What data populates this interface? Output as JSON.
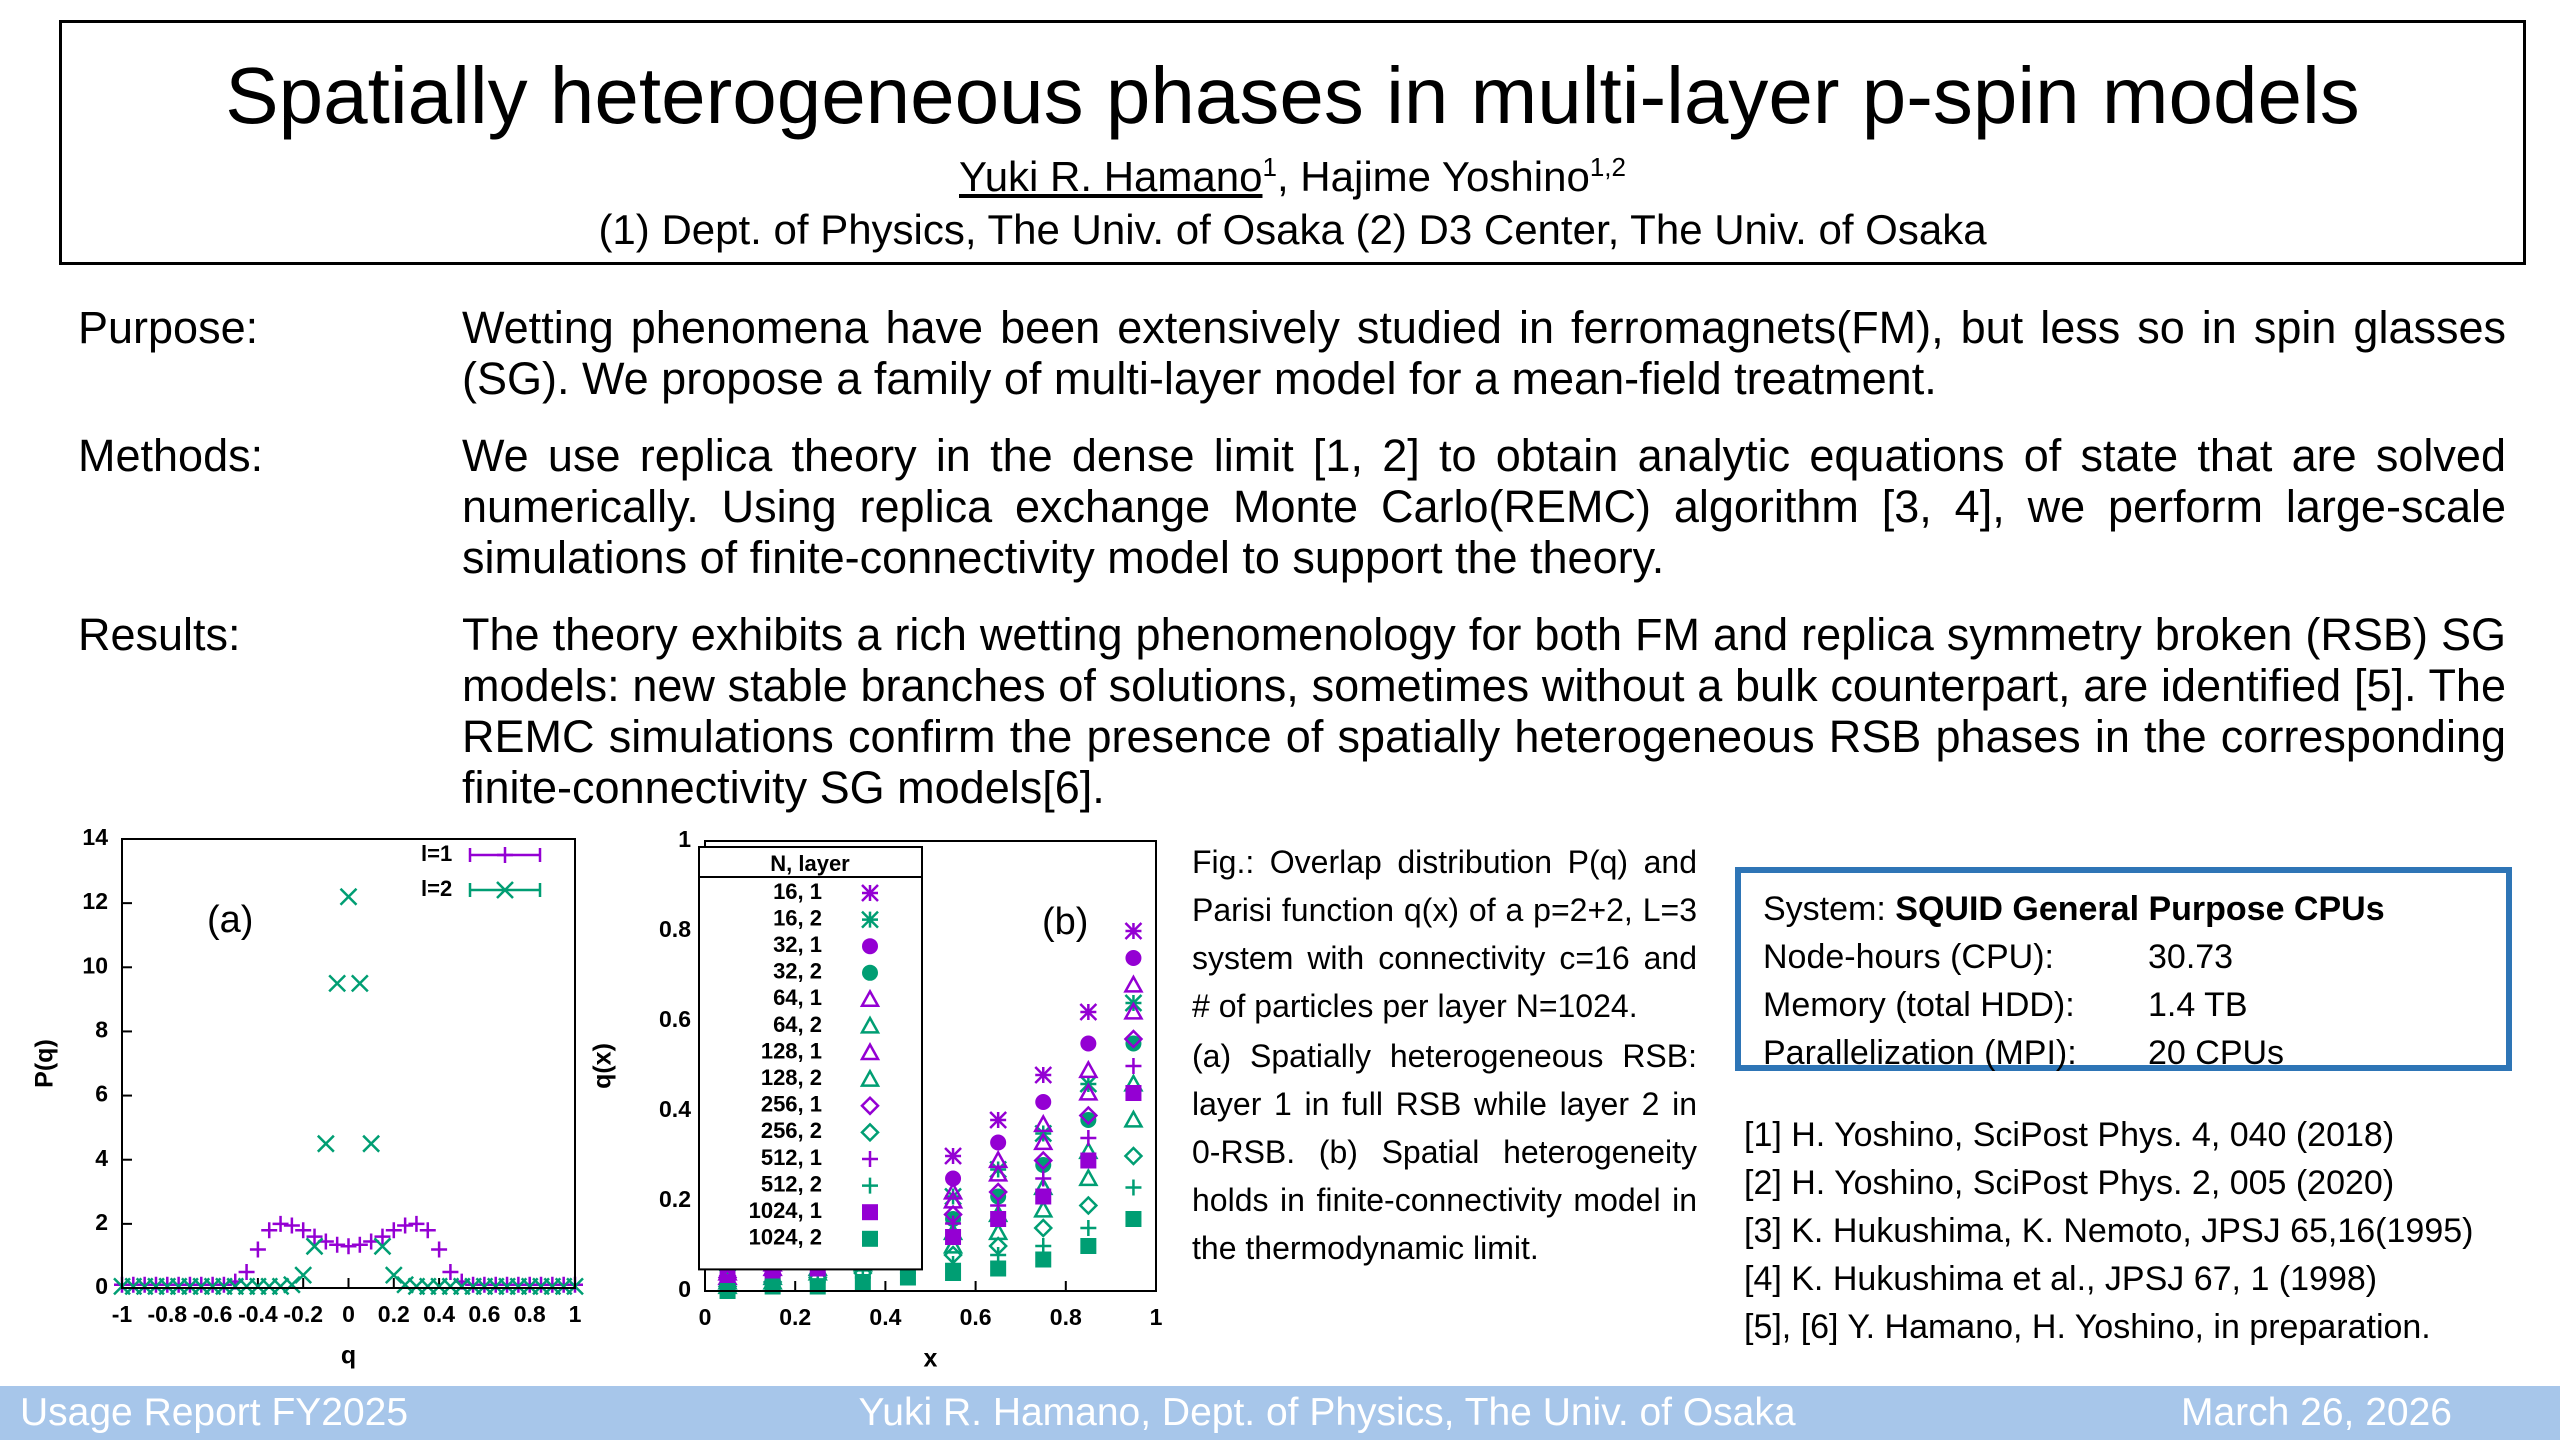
{
  "header": {
    "title": "Spatially heterogeneous phases in multi-layer p-spin models",
    "authors": [
      {
        "name": "Yuki R. Hamano",
        "affiliation": "1"
      },
      {
        "name": "Hajime Yoshino",
        "affiliation": "1,2"
      }
    ],
    "author_separator": ",",
    "affiliations": "(1) Dept. of Physics, The Univ. of Osaka (2) D3 Center, The Univ. of Osaka"
  },
  "sections": [
    {
      "label": "Purpose:",
      "text": "Wetting phenomena have been extensively studied in ferromagnets(FM), but less so in spin glasses (SG). We propose a family of multi-layer model for a mean-field treatment."
    },
    {
      "label": "Methods:",
      "text": "We use replica theory in the dense limit [1, 2] to obtain analytic equations of state that are solved numerically. Using replica exchange Monte Carlo(REMC) algorithm [3, 4], we perform large-scale simulations of finite-connectivity model to support the theory."
    },
    {
      "label": "Results:",
      "text": "The theory exhibits a rich wetting phenomenology for both FM and replica symmetry broken (RSB) SG models: new stable branches of solutions, sometimes without a bulk counterpart, are identified [5]. The REMC simulations confirm the presence of spatially heterogeneous RSB phases in the corresponding finite-connectivity SG models[6]."
    }
  ],
  "chart_data": [
    {
      "type": "scatter",
      "annotation": "(a)",
      "x_label": "q",
      "y_label": "P(q)",
      "legend": "upper right",
      "x": [
        -1,
        -0.95,
        -0.9,
        -0.85,
        -0.8,
        -0.75,
        -0.7,
        -0.65,
        -0.6,
        -0.55,
        -0.5,
        -0.45,
        -0.4,
        -0.35,
        -0.3,
        -0.25,
        -0.2,
        -0.15,
        -0.1,
        -0.05,
        0,
        0.05,
        0.1,
        0.15,
        0.2,
        0.25,
        0.3,
        0.35,
        0.4,
        0.45,
        0.5,
        0.55,
        0.6,
        0.65,
        0.7,
        0.75,
        0.8,
        0.85,
        0.9,
        0.95,
        1
      ],
      "series": [
        {
          "name": "l=1",
          "color": "#9400d3",
          "marker": "plus",
          "values": [
            0.1,
            0.1,
            0.1,
            0.1,
            0.1,
            0.1,
            0.1,
            0.1,
            0.1,
            0.1,
            0.2,
            0.5,
            1.2,
            1.8,
            2.0,
            1.95,
            1.8,
            1.6,
            1.45,
            1.35,
            1.3,
            1.35,
            1.45,
            1.6,
            1.8,
            1.95,
            2.0,
            1.8,
            1.2,
            0.5,
            0.2,
            0.1,
            0.1,
            0.1,
            0.1,
            0.1,
            0.1,
            0.1,
            0.1,
            0.1,
            0.1
          ]
        },
        {
          "name": "l=2",
          "color": "#009e73",
          "marker": "cross",
          "values": [
            0.05,
            0.05,
            0.05,
            0.05,
            0.05,
            0.05,
            0.05,
            0.05,
            0.05,
            0.05,
            0.05,
            0.05,
            0.05,
            0.05,
            0.05,
            0.1,
            0.4,
            1.3,
            4.5,
            9.5,
            12.2,
            9.5,
            4.5,
            1.3,
            0.4,
            0.1,
            0.05,
            0.05,
            0.05,
            0.05,
            0.05,
            0.05,
            0.05,
            0.05,
            0.05,
            0.05,
            0.05,
            0.05,
            0.05,
            0.05,
            0.05
          ]
        }
      ],
      "xlim": [
        -1,
        1
      ],
      "ylim": [
        0,
        14
      ],
      "xticks": [
        -1,
        -0.8,
        -0.6,
        -0.4,
        -0.2,
        0,
        0.2,
        0.4,
        0.6,
        0.8,
        1
      ],
      "yticks": [
        0,
        2,
        4,
        6,
        8,
        10,
        12,
        14
      ]
    },
    {
      "type": "scatter",
      "annotation": "(b)",
      "x_label": "x",
      "y_label": "q(x)",
      "legend": "upper left",
      "legend_title": "N, layer",
      "x": [
        0.05,
        0.15,
        0.25,
        0.35,
        0.45,
        0.55,
        0.65,
        0.75,
        0.85,
        0.95
      ],
      "series": [
        {
          "name": "16, 1",
          "color": "#9400d3",
          "marker": "star",
          "values": [
            0.05,
            0.08,
            0.12,
            0.17,
            0.23,
            0.3,
            0.38,
            0.48,
            0.62,
            0.8
          ]
        },
        {
          "name": "16, 2",
          "color": "#009e73",
          "marker": "star",
          "values": [
            0.03,
            0.05,
            0.08,
            0.12,
            0.16,
            0.21,
            0.27,
            0.35,
            0.46,
            0.64
          ]
        },
        {
          "name": "32, 1",
          "color": "#9400d3",
          "marker": "circle-filled",
          "values": [
            0.04,
            0.07,
            0.1,
            0.14,
            0.19,
            0.25,
            0.33,
            0.42,
            0.55,
            0.74
          ]
        },
        {
          "name": "32, 2",
          "color": "#009e73",
          "marker": "circle-filled",
          "values": [
            0.02,
            0.04,
            0.06,
            0.09,
            0.12,
            0.16,
            0.21,
            0.28,
            0.38,
            0.55
          ]
        },
        {
          "name": "64, 1",
          "color": "#9400d3",
          "marker": "triangle",
          "values": [
            0.04,
            0.06,
            0.09,
            0.13,
            0.17,
            0.22,
            0.29,
            0.37,
            0.49,
            0.68
          ]
        },
        {
          "name": "64, 2",
          "color": "#009e73",
          "marker": "triangle",
          "values": [
            0.02,
            0.03,
            0.05,
            0.07,
            0.1,
            0.13,
            0.17,
            0.23,
            0.31,
            0.46
          ]
        },
        {
          "name": "128, 1",
          "color": "#9400d3",
          "marker": "triangle",
          "values": [
            0.03,
            0.05,
            0.08,
            0.11,
            0.15,
            0.2,
            0.26,
            0.33,
            0.44,
            0.62
          ]
        },
        {
          "name": "128, 2",
          "color": "#009e73",
          "marker": "triangle",
          "values": [
            0.01,
            0.02,
            0.04,
            0.06,
            0.08,
            0.1,
            0.13,
            0.18,
            0.25,
            0.38
          ]
        },
        {
          "name": "256, 1",
          "color": "#9400d3",
          "marker": "diamond",
          "values": [
            0.03,
            0.05,
            0.07,
            0.1,
            0.13,
            0.17,
            0.22,
            0.29,
            0.39,
            0.56
          ]
        },
        {
          "name": "256, 2",
          "color": "#009e73",
          "marker": "diamond",
          "values": [
            0.01,
            0.02,
            0.03,
            0.04,
            0.06,
            0.08,
            0.1,
            0.14,
            0.19,
            0.3
          ]
        },
        {
          "name": "512, 1",
          "color": "#9400d3",
          "marker": "plus",
          "values": [
            0.02,
            0.04,
            0.06,
            0.08,
            0.11,
            0.15,
            0.19,
            0.25,
            0.34,
            0.5
          ]
        },
        {
          "name": "512, 2",
          "color": "#009e73",
          "marker": "plus",
          "values": [
            0.01,
            0.01,
            0.02,
            0.03,
            0.04,
            0.06,
            0.08,
            0.1,
            0.14,
            0.23
          ]
        },
        {
          "name": "1024, 1",
          "color": "#9400d3",
          "marker": "square-filled",
          "values": [
            0.02,
            0.03,
            0.05,
            0.07,
            0.09,
            0.12,
            0.16,
            0.21,
            0.29,
            0.44
          ]
        },
        {
          "name": "1024, 2",
          "color": "#009e73",
          "marker": "square-filled",
          "values": [
            0.0,
            0.01,
            0.01,
            0.02,
            0.03,
            0.04,
            0.05,
            0.07,
            0.1,
            0.16
          ]
        }
      ],
      "xlim": [
        0,
        1
      ],
      "ylim": [
        0,
        1
      ],
      "xticks": [
        0,
        0.2,
        0.4,
        0.6,
        0.8,
        1
      ],
      "yticks": [
        0,
        0.2,
        0.4,
        0.6,
        0.8,
        1
      ]
    }
  ],
  "caption": [
    "Fig.: Overlap distribution P(q) and Parisi function q(x) of a p=2+2, L=3 system with connectivity c=16 and # of particles per layer N=1024.",
    "(a) Spatially heterogeneous RSB: layer 1 in full RSB while layer 2 in 0-RSB. (b) Spatial heterogeneity holds in finite-connectivity model in the thermodynamic limit."
  ],
  "system_box": {
    "system_label": "System:",
    "system": "SQUID General Purpose CPUs",
    "rows": [
      [
        "Node-hours (CPU):",
        "30.73"
      ],
      [
        "Memory (total HDD):",
        "1.4 TB"
      ],
      [
        "Parallelization (MPI):",
        "20 CPUs"
      ]
    ]
  },
  "references": [
    "[1] H. Yoshino, SciPost Phys. 4, 040 (2018)",
    "[2] H. Yoshino, SciPost Phys. 2, 005 (2020)",
    "[3] K. Hukushima, K. Nemoto, JPSJ 65,16(1995)",
    "[4] K. Hukushima et al., JPSJ 67, 1 (1998)",
    "[5], [6] Y. Hamano, H. Yoshino, in preparation."
  ],
  "footer": {
    "left": "Usage Report FY2025",
    "center": "Yuki R. Hamano, Dept. of Physics, The Univ. of Osaka",
    "right": "March 26, 2026"
  }
}
